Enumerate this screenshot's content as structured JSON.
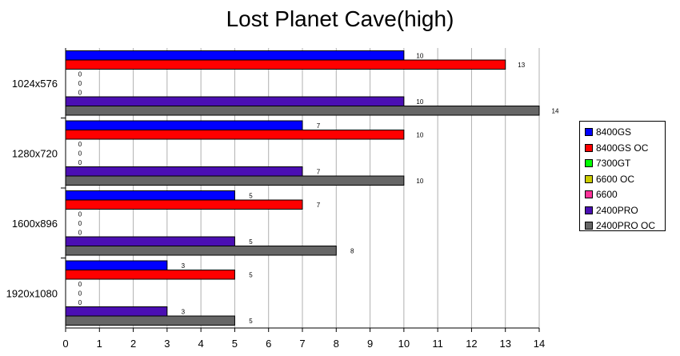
{
  "chart_data": {
    "type": "bar",
    "orientation": "horizontal",
    "title": "Lost Planet Cave(high)",
    "categories": [
      "1024x576",
      "1280x720",
      "1600x896",
      "1920x1080"
    ],
    "series": [
      {
        "name": "8400GS",
        "color": "#0000ff",
        "values": [
          10,
          7,
          5,
          3
        ]
      },
      {
        "name": "8400GS OC",
        "color": "#ff0000",
        "values": [
          13,
          10,
          7,
          5
        ]
      },
      {
        "name": "7300GT",
        "color": "#00ff00",
        "values": [
          0,
          0,
          0,
          0
        ]
      },
      {
        "name": "6600 OC",
        "color": "#cccc00",
        "values": [
          0,
          0,
          0,
          0
        ]
      },
      {
        "name": "6600",
        "color": "#ff3399",
        "values": [
          0,
          0,
          0,
          0
        ]
      },
      {
        "name": "2400PRO",
        "color": "#4b0fb3",
        "values": [
          10,
          7,
          5,
          3
        ]
      },
      {
        "name": "2400PRO OC",
        "color": "#666666",
        "values": [
          14,
          10,
          8,
          5
        ]
      }
    ],
    "xlim": [
      0,
      14
    ],
    "xticks": [
      "0",
      "1",
      "2",
      "3",
      "4",
      "5",
      "6",
      "7",
      "8",
      "9",
      "10",
      "11",
      "12",
      "13",
      "14"
    ],
    "grid": true,
    "legend_position": "right"
  }
}
